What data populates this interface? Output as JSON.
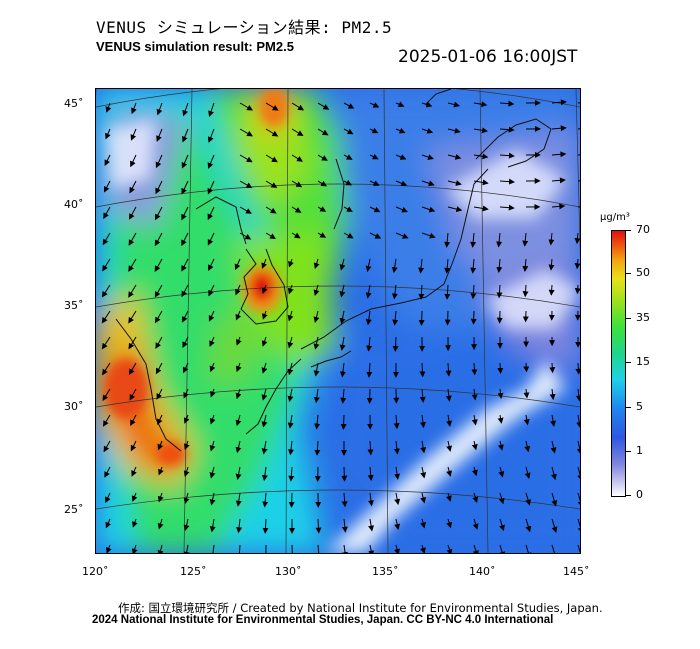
{
  "title_jp": "VENUS シミュレーション結果: PM2.5",
  "title_en": "VENUS simulation result: PM2.5",
  "timestamp": "2025-01-06 16:00JST",
  "lat_labels": [
    "45˚",
    "40˚",
    "35˚",
    "30˚",
    "25˚"
  ],
  "lon_labels": [
    "120˚",
    "125˚",
    "130˚",
    "135˚",
    "140˚",
    "145˚"
  ],
  "colorbar": {
    "unit": "μg/m³",
    "ticks": [
      "70",
      "50",
      "35",
      "15",
      "5",
      "1",
      "0"
    ],
    "colors": [
      "#e01010",
      "#ee4f10",
      "#e8e01a",
      "#3ee23a",
      "#1fd0e8",
      "#2f57e2",
      "#ffffff"
    ]
  },
  "credit_line1": "作成: 国立環境研究所 / Created by National Institute for Environmental Studies, Japan.",
  "credit_line2": "2024 National Institute for Environmental Studies, Japan. CC BY-NC 4.0 International"
}
